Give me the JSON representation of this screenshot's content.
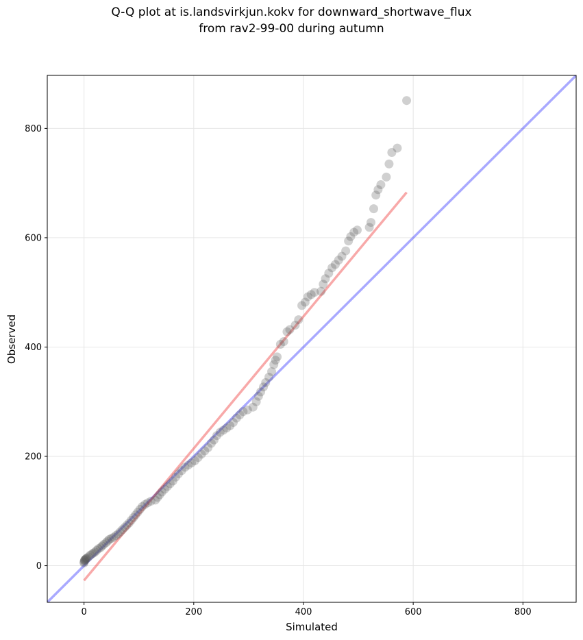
{
  "chart_data": {
    "type": "scatter",
    "title_line1": "Q-Q plot at is.landsvirkjun.kokv for downward_shortwave_flux",
    "title_line2": "from rav2-99-00 during autumn",
    "xlabel": "Simulated",
    "ylabel": "Observed",
    "xlim": [
      -67,
      897
    ],
    "ylim": [
      -67,
      897
    ],
    "xticks": [
      0,
      200,
      400,
      600,
      800
    ],
    "yticks": [
      0,
      200,
      400,
      600,
      800
    ],
    "grid": true,
    "colors": {
      "points": "#555555",
      "identity_line": "#3333ff",
      "fit_line": "#ee3333"
    },
    "identity_line": {
      "x": [
        -67,
        897
      ],
      "y": [
        -67,
        897
      ]
    },
    "fit_line": {
      "x": [
        0,
        588
      ],
      "y": [
        -27,
        683
      ]
    },
    "points": [
      [
        0,
        5
      ],
      [
        0,
        7
      ],
      [
        1,
        9
      ],
      [
        1,
        10
      ],
      [
        2,
        11
      ],
      [
        3,
        12
      ],
      [
        4,
        13
      ],
      [
        5,
        14
      ],
      [
        8,
        16
      ],
      [
        11,
        19
      ],
      [
        14,
        21
      ],
      [
        17,
        23
      ],
      [
        20,
        25
      ],
      [
        23,
        28
      ],
      [
        26,
        31
      ],
      [
        30,
        33
      ],
      [
        33,
        36
      ],
      [
        36,
        39
      ],
      [
        40,
        42
      ],
      [
        43,
        45
      ],
      [
        46,
        48
      ],
      [
        50,
        50
      ],
      [
        54,
        52
      ],
      [
        58,
        55
      ],
      [
        62,
        58
      ],
      [
        66,
        62
      ],
      [
        70,
        66
      ],
      [
        74,
        70
      ],
      [
        78,
        74
      ],
      [
        82,
        78
      ],
      [
        86,
        83
      ],
      [
        90,
        88
      ],
      [
        94,
        93
      ],
      [
        98,
        98
      ],
      [
        102,
        103
      ],
      [
        106,
        108
      ],
      [
        111,
        112
      ],
      [
        116,
        115
      ],
      [
        122,
        118
      ],
      [
        130,
        120
      ],
      [
        134,
        125
      ],
      [
        138,
        130
      ],
      [
        142,
        135
      ],
      [
        147,
        140
      ],
      [
        152,
        145
      ],
      [
        157,
        150
      ],
      [
        162,
        155
      ],
      [
        167,
        162
      ],
      [
        172,
        168
      ],
      [
        178,
        174
      ],
      [
        184,
        180
      ],
      [
        190,
        184
      ],
      [
        196,
        188
      ],
      [
        202,
        192
      ],
      [
        208,
        198
      ],
      [
        214,
        204
      ],
      [
        220,
        210
      ],
      [
        226,
        216
      ],
      [
        232,
        224
      ],
      [
        237,
        230
      ],
      [
        242,
        238
      ],
      [
        248,
        244
      ],
      [
        254,
        248
      ],
      [
        260,
        252
      ],
      [
        266,
        256
      ],
      [
        272,
        262
      ],
      [
        278,
        270
      ],
      [
        284,
        276
      ],
      [
        290,
        282
      ],
      [
        298,
        285
      ],
      [
        308,
        290
      ],
      [
        314,
        300
      ],
      [
        318,
        310
      ],
      [
        322,
        318
      ],
      [
        327,
        327
      ],
      [
        331,
        335
      ],
      [
        337,
        345
      ],
      [
        342,
        355
      ],
      [
        346,
        368
      ],
      [
        349,
        376
      ],
      [
        352,
        382
      ],
      [
        358,
        405
      ],
      [
        364,
        410
      ],
      [
        370,
        428
      ],
      [
        375,
        432
      ],
      [
        385,
        440
      ],
      [
        391,
        450
      ],
      [
        397,
        476
      ],
      [
        403,
        482
      ],
      [
        408,
        492
      ],
      [
        414,
        496
      ],
      [
        420,
        500
      ],
      [
        432,
        502
      ],
      [
        436,
        515
      ],
      [
        440,
        525
      ],
      [
        446,
        535
      ],
      [
        452,
        545
      ],
      [
        458,
        551
      ],
      [
        464,
        559
      ],
      [
        470,
        566
      ],
      [
        477,
        576
      ],
      [
        482,
        594
      ],
      [
        486,
        602
      ],
      [
        492,
        610
      ],
      [
        498,
        614
      ],
      [
        520,
        619
      ],
      [
        523,
        628
      ],
      [
        528,
        653
      ],
      [
        532,
        678
      ],
      [
        536,
        688
      ],
      [
        541,
        697
      ],
      [
        551,
        711
      ],
      [
        556,
        735
      ],
      [
        561,
        756
      ],
      [
        571,
        764
      ],
      [
        588,
        851
      ]
    ]
  }
}
